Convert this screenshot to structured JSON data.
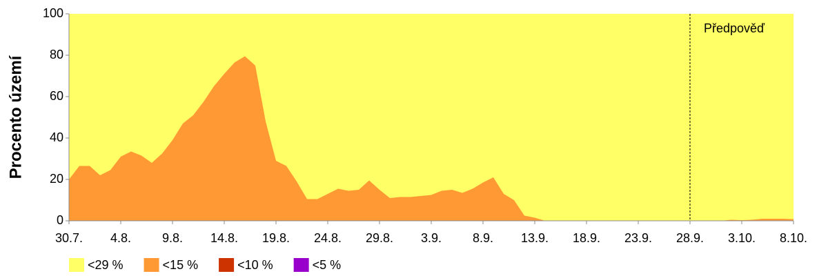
{
  "chart_data": {
    "type": "area",
    "ylabel": "Procento území",
    "categories": [
      "30.7.",
      null,
      null,
      null,
      null,
      "4.8.",
      null,
      null,
      null,
      null,
      "9.8.",
      null,
      null,
      null,
      null,
      "14.8.",
      null,
      null,
      null,
      null,
      "19.8.",
      null,
      null,
      null,
      null,
      "24.8.",
      null,
      null,
      null,
      null,
      "29.8.",
      null,
      null,
      null,
      null,
      "3.9.",
      null,
      null,
      null,
      null,
      "8.9.",
      null,
      null,
      null,
      null,
      "13.9.",
      null,
      null,
      null,
      null,
      "18.9.",
      null,
      null,
      null,
      null,
      "23.9.",
      null,
      null,
      null,
      null,
      "28.9.",
      null,
      null,
      null,
      null,
      "3.10.",
      null,
      null,
      null,
      null,
      "8.10."
    ],
    "series": [
      {
        "name": "<29 %",
        "color": "#ffff66",
        "values": [
          100,
          100,
          100,
          100,
          100,
          100,
          100,
          100,
          100,
          100,
          100,
          100,
          100,
          100,
          100,
          100,
          100,
          100,
          100,
          100,
          100,
          100,
          100,
          100,
          100,
          100,
          100,
          100,
          100,
          100,
          100,
          100,
          100,
          100,
          100,
          100,
          100,
          100,
          100,
          100,
          100,
          100,
          100,
          100,
          100,
          100,
          100,
          100,
          100,
          100,
          100,
          100,
          100,
          100,
          100,
          100,
          100,
          100,
          100,
          100,
          100,
          100,
          100,
          100,
          100,
          100,
          100,
          100,
          100,
          100,
          100
        ]
      },
      {
        "name": "<15 %",
        "color": "#ff9933",
        "values": [
          20,
          26.5,
          26.5,
          22,
          24.5,
          31,
          33.5,
          31.5,
          28,
          32.5,
          39,
          47,
          51,
          57.5,
          65,
          71,
          76.5,
          79.5,
          75,
          48,
          29,
          26.5,
          19,
          10.5,
          10.5,
          13,
          15.5,
          14.5,
          15,
          19.5,
          15,
          11,
          11.5,
          11.5,
          12,
          12.5,
          14.5,
          15,
          13.5,
          15.5,
          18.5,
          21,
          13,
          10,
          2.5,
          1.5,
          0,
          0,
          0,
          0,
          0,
          0,
          0,
          0,
          0,
          0,
          0,
          0,
          0,
          0,
          0,
          0,
          0,
          0,
          0.5,
          0.3,
          0.5,
          1,
          1,
          1,
          0.8
        ]
      },
      {
        "name": "<10 %",
        "color": "#cc3300",
        "values": [
          0,
          0,
          0,
          0,
          0,
          0,
          0,
          0,
          0,
          0,
          0,
          0,
          0,
          0,
          0,
          0,
          0,
          0,
          0,
          0,
          0,
          0,
          0,
          0,
          0,
          0,
          0,
          0,
          0,
          0,
          0,
          0,
          0,
          0,
          0,
          0,
          0,
          0,
          0,
          0,
          0,
          0,
          0,
          0,
          0,
          0,
          0,
          0,
          0,
          0,
          0,
          0,
          0,
          0,
          0,
          0,
          0,
          0,
          0,
          0,
          0,
          0,
          0,
          0,
          0,
          0,
          0,
          0,
          0,
          0,
          0
        ]
      },
      {
        "name": "<5 %",
        "color": "#9900cc",
        "values": [
          0,
          0,
          0,
          0,
          0,
          0,
          0,
          0,
          0,
          0,
          0,
          0,
          0,
          0,
          0,
          0,
          0,
          0,
          0,
          0,
          0,
          0,
          0,
          0,
          0,
          0,
          0,
          0,
          0,
          0,
          0,
          0,
          0,
          0,
          0,
          0,
          0,
          0,
          0,
          0,
          0,
          0,
          0,
          0,
          0,
          0,
          0,
          0,
          0,
          0,
          0,
          0,
          0,
          0,
          0,
          0,
          0,
          0,
          0,
          0,
          0,
          0,
          0,
          0,
          0,
          0,
          0,
          0,
          0,
          0,
          0
        ]
      }
    ],
    "ylim": [
      0,
      100
    ],
    "yticks": [
      0,
      20,
      40,
      60,
      80,
      100
    ],
    "annotations": [
      {
        "text": "Předpověď",
        "x": "28.9."
      }
    ]
  }
}
